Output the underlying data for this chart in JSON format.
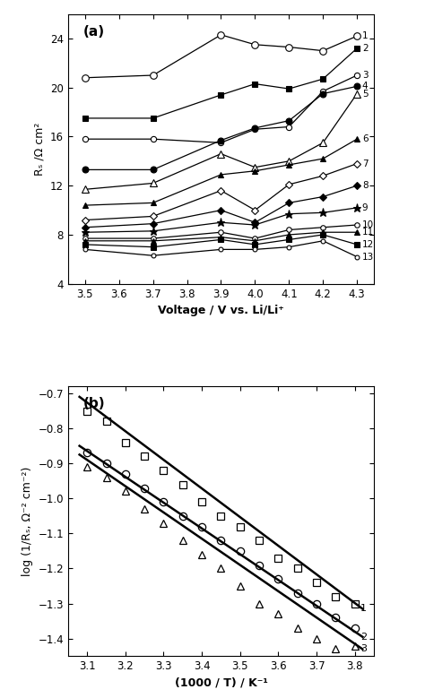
{
  "panel_a": {
    "xlabel": "Voltage / V vs. Li/Li⁺",
    "ylabel": "Rₛ /Ω cm²",
    "title": "(a)",
    "xlim": [
      3.45,
      4.35
    ],
    "ylim": [
      4,
      26
    ],
    "xticks": [
      3.5,
      3.6,
      3.7,
      3.8,
      3.9,
      4.0,
      4.1,
      4.2,
      4.3
    ],
    "yticks": [
      4,
      8,
      12,
      16,
      20,
      24
    ],
    "x_voltages": [
      3.5,
      3.7,
      3.9,
      4.0,
      4.1,
      4.2,
      4.3
    ],
    "series": [
      {
        "label": "1",
        "marker": "o",
        "filled": false,
        "values": [
          20.8,
          21.0,
          24.3,
          23.5,
          23.3,
          23.0,
          24.2
        ]
      },
      {
        "label": "2",
        "marker": "s",
        "filled": true,
        "values": [
          17.5,
          17.5,
          19.4,
          20.3,
          19.9,
          20.7,
          23.2
        ]
      },
      {
        "label": "3",
        "marker": "o",
        "filled": false,
        "values": [
          15.8,
          15.8,
          15.5,
          16.6,
          16.8,
          19.7,
          21.0
        ]
      },
      {
        "label": "4",
        "marker": "s",
        "filled": true,
        "values": [
          13.3,
          13.3,
          15.7,
          16.7,
          17.3,
          19.5,
          20.1
        ]
      },
      {
        "label": "5",
        "marker": "^",
        "filled": false,
        "values": [
          11.7,
          12.2,
          14.6,
          13.5,
          14.0,
          15.5,
          19.5
        ]
      },
      {
        "label": "6",
        "marker": "^",
        "filled": true,
        "values": [
          10.4,
          10.6,
          12.9,
          13.2,
          13.7,
          14.2,
          15.8
        ]
      },
      {
        "label": "7",
        "marker": "D",
        "filled": false,
        "values": [
          9.2,
          9.5,
          11.6,
          10.0,
          12.1,
          12.8,
          13.8
        ]
      },
      {
        "label": "8",
        "marker": "D",
        "filled": true,
        "values": [
          8.6,
          8.9,
          10.0,
          9.0,
          10.6,
          11.1,
          12.0
        ]
      },
      {
        "label": "9",
        "marker": "*",
        "filled": true,
        "values": [
          8.2,
          8.3,
          9.0,
          8.8,
          9.7,
          9.8,
          10.2
        ]
      },
      {
        "label": "10",
        "marker": "o",
        "filled": false,
        "values": [
          7.7,
          7.7,
          8.2,
          7.7,
          8.4,
          8.6,
          8.8
        ]
      },
      {
        "label": "11",
        "marker": "^",
        "filled": true,
        "values": [
          7.5,
          7.5,
          7.8,
          7.5,
          8.0,
          8.2,
          8.2
        ]
      },
      {
        "label": "12",
        "marker": "s",
        "filled": true,
        "values": [
          7.2,
          7.0,
          7.6,
          7.2,
          7.6,
          8.0,
          7.2
        ]
      },
      {
        "label": "13",
        "marker": "o",
        "filled": false,
        "values": [
          6.8,
          6.3,
          6.8,
          6.8,
          7.0,
          7.5,
          6.2
        ]
      }
    ]
  },
  "panel_b": {
    "xlabel": "(1000 / T) / K⁻¹",
    "ylabel": "log (1/Rₛ, Ω⁻² cm⁻²)",
    "title": "(b)",
    "xlim": [
      3.05,
      3.85
    ],
    "ylim": [
      -1.45,
      -0.68
    ],
    "xticks": [
      3.1,
      3.2,
      3.3,
      3.4,
      3.5,
      3.6,
      3.7,
      3.8
    ],
    "yticks": [
      -1.4,
      -1.3,
      -1.2,
      -1.1,
      -1.0,
      -0.9,
      -0.8,
      -0.7
    ],
    "series": [
      {
        "label": "1",
        "marker": "s",
        "x_data": [
          3.1,
          3.15,
          3.2,
          3.25,
          3.3,
          3.35,
          3.4,
          3.45,
          3.5,
          3.55,
          3.6,
          3.65,
          3.7,
          3.75,
          3.8
        ],
        "y_data": [
          -0.75,
          -0.78,
          -0.84,
          -0.88,
          -0.92,
          -0.96,
          -1.01,
          -1.05,
          -1.08,
          -1.12,
          -1.17,
          -1.2,
          -1.24,
          -1.28,
          -1.3
        ],
        "fit_x": [
          3.08,
          3.82
        ],
        "fit_y": [
          -0.71,
          -1.315
        ]
      },
      {
        "label": "2",
        "marker": "o",
        "x_data": [
          3.1,
          3.15,
          3.2,
          3.25,
          3.3,
          3.35,
          3.4,
          3.45,
          3.5,
          3.55,
          3.6,
          3.65,
          3.7,
          3.75,
          3.8
        ],
        "y_data": [
          -0.87,
          -0.9,
          -0.93,
          -0.97,
          -1.01,
          -1.05,
          -1.08,
          -1.12,
          -1.15,
          -1.19,
          -1.23,
          -1.27,
          -1.3,
          -1.34,
          -1.37
        ],
        "fit_x": [
          3.08,
          3.82
        ],
        "fit_y": [
          -0.85,
          -1.395
        ]
      },
      {
        "label": "3",
        "marker": "^",
        "x_data": [
          3.1,
          3.15,
          3.2,
          3.25,
          3.3,
          3.35,
          3.4,
          3.45,
          3.5,
          3.55,
          3.6,
          3.65,
          3.7,
          3.75,
          3.8
        ],
        "y_data": [
          -0.91,
          -0.94,
          -0.98,
          -1.03,
          -1.07,
          -1.12,
          -1.16,
          -1.2,
          -1.25,
          -1.3,
          -1.33,
          -1.37,
          -1.4,
          -1.43,
          -1.42
        ],
        "fit_x": [
          3.08,
          3.82
        ],
        "fit_y": [
          -0.875,
          -1.43
        ]
      }
    ]
  }
}
